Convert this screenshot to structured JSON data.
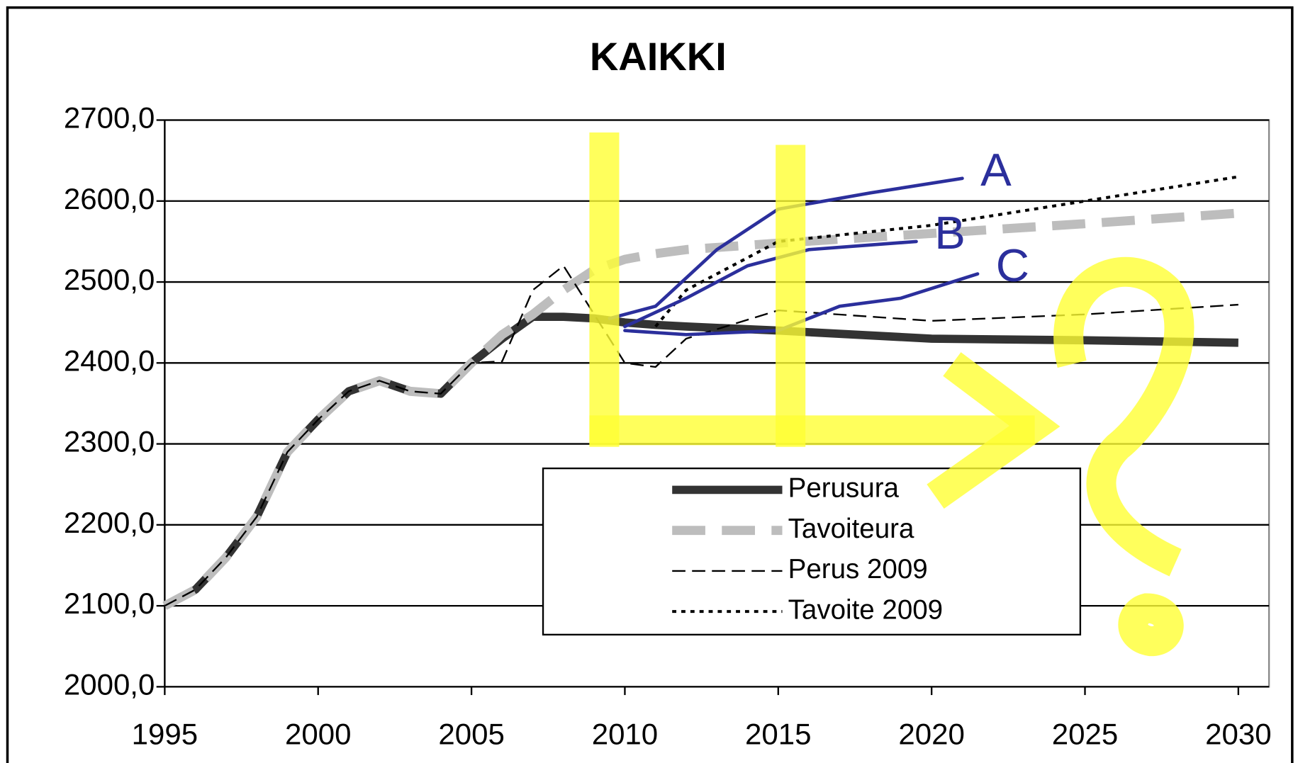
{
  "chart_data": {
    "type": "line",
    "title": "KAIKKI",
    "x": [
      1995,
      1996,
      1997,
      1998,
      1999,
      2000,
      2001,
      2002,
      2003,
      2004,
      2005,
      2006,
      2007,
      2008,
      2009,
      2010,
      2011,
      2012,
      2015,
      2020,
      2025,
      2030
    ],
    "series": [
      {
        "name": "Perusura",
        "color": "#333333",
        "style": "thick",
        "values": [
          2100,
          2120,
          2160,
          2210,
          2290,
          2330,
          2365,
          2378,
          2365,
          2362,
          2400,
          2430,
          2457,
          2457,
          2455,
          2450,
          2447,
          2445,
          2440,
          2430,
          2428,
          2425
        ]
      },
      {
        "name": "Tavoiteura",
        "color": "#bdbdbd",
        "style": "thick-dashed",
        "values": [
          2100,
          2120,
          2160,
          2210,
          2290,
          2330,
          2365,
          2378,
          2365,
          2362,
          2400,
          2435,
          2460,
          2490,
          2515,
          2528,
          2535,
          2540,
          2548,
          2560,
          2572,
          2585
        ]
      },
      {
        "name": "Perus 2009",
        "color": "#000000",
        "style": "dashed",
        "values": [
          2100,
          2120,
          2160,
          2210,
          2290,
          2330,
          2365,
          2378,
          2365,
          2362,
          2400,
          2402,
          2490,
          2520,
          2460,
          2400,
          2395,
          2430,
          2465,
          2452,
          2460,
          2472
        ]
      },
      {
        "name": "Tavoite 2009",
        "color": "#000000",
        "style": "dotted",
        "values": [
          null,
          null,
          null,
          null,
          null,
          null,
          null,
          null,
          null,
          null,
          null,
          null,
          null,
          null,
          null,
          null,
          2445,
          2490,
          2550,
          2570,
          2600,
          2630
        ]
      }
    ],
    "annotations": [
      {
        "label": "A",
        "color": "#2b2f9c",
        "x": [
          2009.5,
          2011,
          2013,
          2015,
          2018,
          2021
        ],
        "values": [
          2455,
          2470,
          2540,
          2590,
          2610,
          2628
        ]
      },
      {
        "label": "B",
        "color": "#2b2f9c",
        "x": [
          2010,
          2012,
          2014,
          2016,
          2019.5
        ],
        "values": [
          2445,
          2480,
          2520,
          2540,
          2550
        ]
      },
      {
        "label": "C",
        "color": "#2b2f9c",
        "x": [
          2010,
          2012,
          2015,
          2017,
          2019,
          2021.5
        ],
        "values": [
          2440,
          2435,
          2440,
          2470,
          2480,
          2510
        ]
      }
    ],
    "xlim": [
      1995,
      2031
    ],
    "xticks": [
      1995,
      2000,
      2005,
      2010,
      2015,
      2020,
      2025,
      2030
    ],
    "ylim": [
      2000,
      2700
    ],
    "yticks": [
      {
        "value": 2000,
        "label": "2000,0"
      },
      {
        "value": 2100,
        "label": "2100,0"
      },
      {
        "value": 2200,
        "label": "2200,0"
      },
      {
        "value": 2300,
        "label": "2300,0"
      },
      {
        "value": 2400,
        "label": "2400,0"
      },
      {
        "value": 2500,
        "label": "2500,0"
      },
      {
        "value": 2600,
        "label": "2600,0"
      },
      {
        "value": 2700,
        "label": "2700,0"
      }
    ],
    "grid": true
  }
}
